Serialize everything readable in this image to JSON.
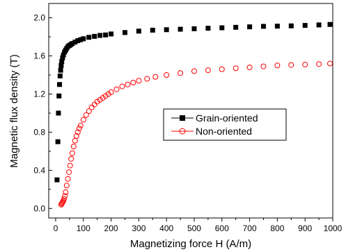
{
  "chart_data": {
    "type": "scatter",
    "title": "",
    "xlabel": "Magnetizing force H (A/m)",
    "ylabel": "Magnetic flux density (T)",
    "xlim": [
      -25,
      1000
    ],
    "ylim": [
      -0.1,
      2.15
    ],
    "xticks": [
      0,
      100,
      200,
      300,
      400,
      500,
      600,
      700,
      800,
      900,
      1000
    ],
    "yticks": [
      0.0,
      0.4,
      0.8,
      1.2,
      1.6,
      2.0
    ],
    "ytick_labels": [
      "0.0",
      "0.4",
      "0.8",
      "1.2",
      "1.6",
      "2.0"
    ],
    "grid": false,
    "legend_position": "center-right",
    "series": [
      {
        "name": "Grain-oriented",
        "marker": "square-filled",
        "color": "#000000",
        "x": [
          5,
          8,
          10,
          12,
          14,
          16,
          18,
          20,
          22,
          25,
          28,
          32,
          36,
          40,
          45,
          50,
          55,
          60,
          70,
          80,
          90,
          100,
          120,
          140,
          160,
          180,
          200,
          250,
          300,
          350,
          400,
          450,
          500,
          550,
          600,
          650,
          700,
          750,
          800,
          850,
          900,
          950,
          990
        ],
        "y": [
          0.3,
          0.7,
          1.0,
          1.18,
          1.3,
          1.39,
          1.45,
          1.5,
          1.54,
          1.58,
          1.61,
          1.64,
          1.66,
          1.68,
          1.7,
          1.71,
          1.72,
          1.73,
          1.745,
          1.76,
          1.77,
          1.78,
          1.795,
          1.805,
          1.815,
          1.82,
          1.83,
          1.845,
          1.86,
          1.87,
          1.875,
          1.88,
          1.885,
          1.89,
          1.895,
          1.9,
          1.905,
          1.91,
          1.912,
          1.915,
          1.92,
          1.925,
          1.93
        ]
      },
      {
        "name": "Non-oriented",
        "marker": "circle-open",
        "color": "#ff0000",
        "x": [
          20,
          22,
          24,
          26,
          28,
          30,
          33,
          36,
          40,
          44,
          48,
          52,
          56,
          60,
          65,
          70,
          75,
          80,
          85,
          90,
          100,
          110,
          120,
          130,
          140,
          150,
          160,
          170,
          180,
          190,
          200,
          220,
          240,
          260,
          280,
          300,
          330,
          360,
          400,
          450,
          500,
          550,
          600,
          650,
          700,
          750,
          800,
          850,
          900,
          950,
          990
        ],
        "y": [
          0.04,
          0.05,
          0.06,
          0.07,
          0.08,
          0.1,
          0.13,
          0.17,
          0.24,
          0.31,
          0.38,
          0.45,
          0.52,
          0.58,
          0.65,
          0.71,
          0.76,
          0.8,
          0.84,
          0.87,
          0.93,
          0.98,
          1.02,
          1.06,
          1.09,
          1.12,
          1.14,
          1.16,
          1.18,
          1.2,
          1.22,
          1.25,
          1.28,
          1.3,
          1.32,
          1.34,
          1.36,
          1.38,
          1.4,
          1.42,
          1.44,
          1.45,
          1.46,
          1.47,
          1.48,
          1.49,
          1.5,
          1.505,
          1.51,
          1.515,
          1.52
        ]
      }
    ]
  }
}
